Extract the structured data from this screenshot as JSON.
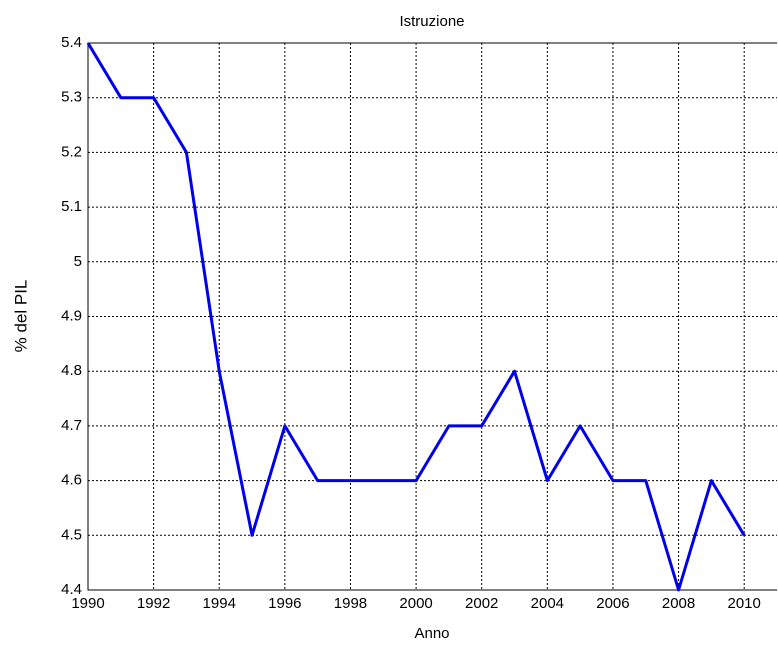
{
  "chart_data": {
    "type": "line",
    "title": "Istruzione",
    "x_label": "Anno",
    "y_label": "% del PIL",
    "x": [
      1990,
      1991,
      1992,
      1993,
      1994,
      1995,
      1996,
      1997,
      1998,
      1999,
      2000,
      2001,
      2002,
      2003,
      2004,
      2005,
      2006,
      2007,
      2008,
      2009,
      2010
    ],
    "series": [
      {
        "name": "Istruzione",
        "color": "#0000ee",
        "values": [
          5.4,
          5.3,
          5.3,
          5.2,
          4.8,
          4.5,
          4.7,
          4.6,
          4.6,
          4.6,
          4.6,
          4.7,
          4.7,
          4.8,
          4.6,
          4.7,
          4.6,
          4.6,
          4.4,
          4.6,
          4.5
        ]
      }
    ],
    "xlim": [
      1990,
      2011
    ],
    "xticks": [
      1990,
      1992,
      1994,
      1996,
      1998,
      2000,
      2002,
      2004,
      2006,
      2008,
      2010
    ],
    "ylim": [
      4.4,
      5.4
    ],
    "yticks": [
      4.4,
      4.5,
      4.6,
      4.7,
      4.8,
      4.9,
      5,
      5.1,
      5.2,
      5.3,
      5.4
    ],
    "grid": true
  }
}
